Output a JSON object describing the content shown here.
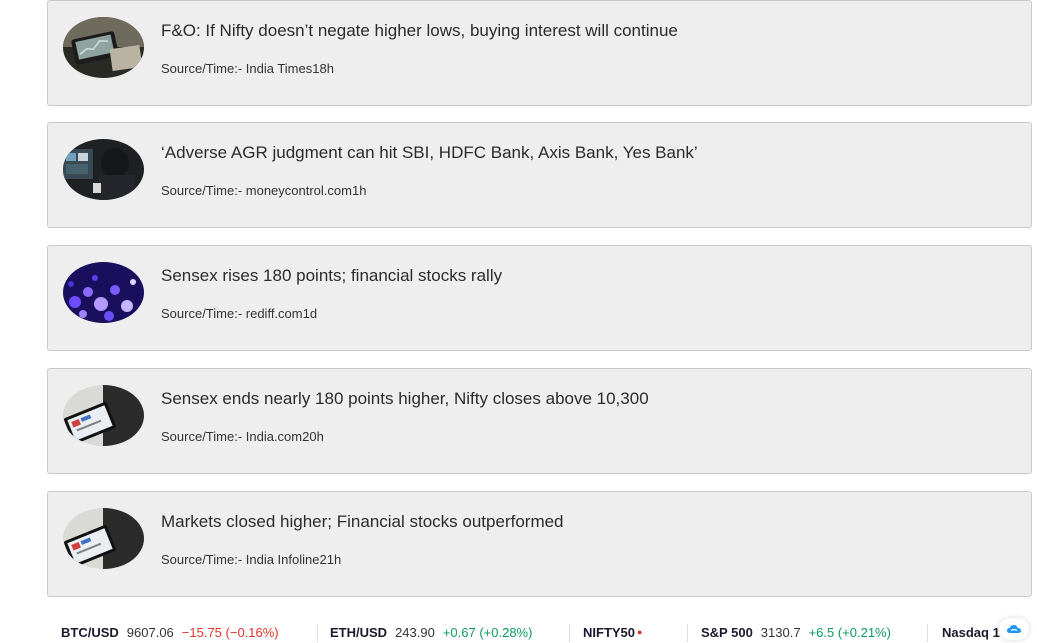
{
  "news": [
    {
      "headline": "F&O: If Nifty doesn’t negate higher lows, buying interest will continue",
      "source": "Source/Time:- India Times18h",
      "thumb_icon": "phone-stock-chart-image"
    },
    {
      "headline": "‘Adverse AGR judgment can hit SBI, HDFC Bank, Axis Bank, Yes Bank’",
      "source": "Source/Time:- moneycontrol.com1h",
      "thumb_icon": "trader-at-screens-image"
    },
    {
      "headline": "Sensex rises 180 points; financial stocks rally",
      "source": "Source/Time:- rediff.com1d",
      "thumb_icon": "purple-lights-image"
    },
    {
      "headline": "Sensex ends nearly 180 points higher, Nifty closes above 10,300",
      "source": "Source/Time:- India.com20h",
      "thumb_icon": "tablet-chart-image"
    },
    {
      "headline": "Markets closed higher; Financial stocks outperformed",
      "source": "Source/Time:- India Infoline21h",
      "thumb_icon": "tablet-chart-image"
    }
  ],
  "ticker": [
    {
      "symbol": "BTC/USD",
      "price": "9607.06",
      "change": "−15.75 (−0.16%)",
      "direction": "down"
    },
    {
      "symbol": "ETH/USD",
      "price": "243.90",
      "change": "+0.67 (+0.28%)",
      "direction": "up"
    },
    {
      "symbol": "NIFTY50",
      "price": "",
      "change": "",
      "direction": "down"
    },
    {
      "symbol": "S&P 500",
      "price": "3130.7",
      "change": "+6.5 (+0.21%)",
      "direction": "up"
    },
    {
      "symbol": "Nasdaq 1",
      "price": "",
      "change": "",
      "direction": ""
    }
  ],
  "colors": {
    "card_bg": "#eeeeee",
    "card_border": "#c9c9c9",
    "negative": "#e0342b",
    "positive": "#0c9b5d",
    "widget_icon": "#2196f3"
  },
  "widget_icon": "cloud-icon"
}
